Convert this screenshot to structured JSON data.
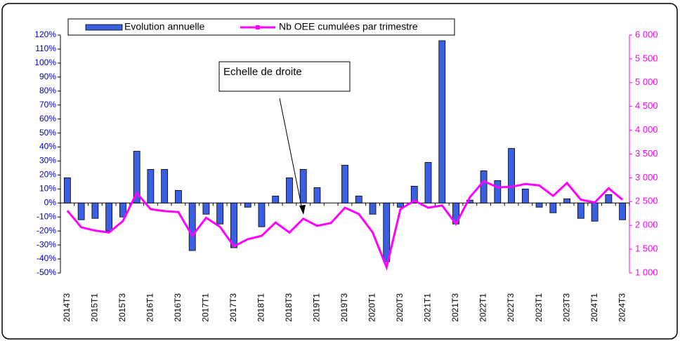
{
  "chart_data": {
    "type": "bar-line",
    "categories": [
      "2014T3",
      null,
      "2015T1",
      null,
      "2015T3",
      null,
      "2016T1",
      null,
      "2016T3",
      null,
      "2017T1",
      null,
      "2017T3",
      null,
      "2018T1",
      null,
      "2018T3",
      null,
      "2019T1",
      null,
      "2019T3",
      null,
      "2020T1",
      null,
      "2020T3",
      null,
      "2021T1",
      null,
      "2021T3",
      null,
      "2022T1",
      null,
      "2022T3",
      null,
      "2023T1",
      null,
      "2023T3",
      null,
      "2024T1",
      null,
      "2024T3"
    ],
    "series": [
      {
        "name": "Evolution annuelle",
        "color": "#3a5fe0",
        "kind": "bar",
        "values": [
          18,
          -12,
          -11,
          -20,
          -10,
          37,
          24,
          24,
          9,
          -34,
          -8,
          -15,
          -32,
          -3,
          -17,
          5,
          18,
          24,
          11,
          0,
          27,
          5,
          -8,
          -42,
          -3,
          12,
          29,
          116,
          -15,
          2,
          23,
          16,
          39,
          10,
          -3,
          -7,
          3,
          -11,
          -13,
          6,
          -12
        ]
      },
      {
        "name": "Nb OEE cumulées par trimestre",
        "color": "#ff00ff",
        "kind": "line",
        "axis": "y2",
        "values": [
          2310,
          1960,
          1890,
          1850,
          2090,
          2680,
          2340,
          2300,
          2280,
          1780,
          2160,
          1970,
          1560,
          1710,
          1780,
          2060,
          1850,
          2140,
          1990,
          2050,
          2370,
          2240,
          1850,
          1120,
          2340,
          2520,
          2370,
          2420,
          2030,
          2590,
          2930,
          2800,
          2810,
          2870,
          2840,
          2620,
          2890,
          2540,
          2480,
          2780,
          2540
        ]
      }
    ],
    "ylim": [
      -50,
      120
    ],
    "yticks": [
      {
        "value": -50,
        "label": "-50%"
      },
      {
        "value": -40,
        "label": "-40%"
      },
      {
        "value": -30,
        "label": "-30%"
      },
      {
        "value": -20,
        "label": "-20%"
      },
      {
        "value": -10,
        "label": "-10%"
      },
      {
        "value": 0,
        "label": "0%"
      },
      {
        "value": 10,
        "label": "10%"
      },
      {
        "value": 20,
        "label": "20%"
      },
      {
        "value": 30,
        "label": "30%"
      },
      {
        "value": 40,
        "label": "40%"
      },
      {
        "value": 50,
        "label": "50%"
      },
      {
        "value": 60,
        "label": "60%"
      },
      {
        "value": 70,
        "label": "70%"
      },
      {
        "value": 80,
        "label": "80%"
      },
      {
        "value": 90,
        "label": "90%"
      },
      {
        "value": 100,
        "label": "100%"
      },
      {
        "value": 110,
        "label": "110%"
      },
      {
        "value": 120,
        "label": "120%"
      }
    ],
    "y2lim": [
      1000,
      6000
    ],
    "y2ticks": [
      {
        "value": 1000,
        "label": "1 000"
      },
      {
        "value": 1500,
        "label": "1 500"
      },
      {
        "value": 2000,
        "label": "2 000"
      },
      {
        "value": 2500,
        "label": "2 500"
      },
      {
        "value": 3000,
        "label": "3 000"
      },
      {
        "value": 3500,
        "label": "3 500"
      },
      {
        "value": 4000,
        "label": "4 000"
      },
      {
        "value": 4500,
        "label": "4 500"
      },
      {
        "value": 5000,
        "label": "5 000"
      },
      {
        "value": 5500,
        "label": "5 500"
      },
      {
        "value": 6000,
        "label": "6 000"
      }
    ],
    "y2color": "#ff00ff",
    "annotation": "Echelle de droite",
    "grid": false
  }
}
